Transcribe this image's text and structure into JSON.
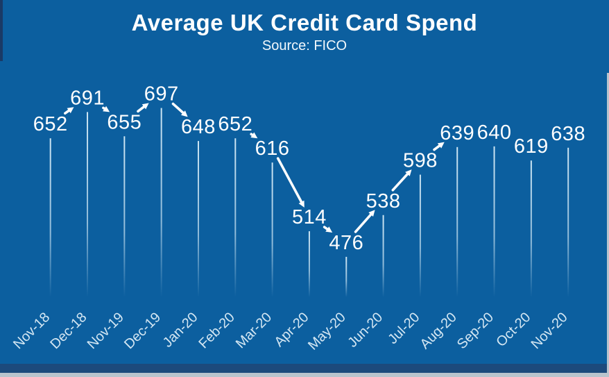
{
  "header": {
    "title": "Average UK Credit Card Spend",
    "subtitle": "Source: FICO"
  },
  "chart_data": {
    "type": "line",
    "title": "Average UK Credit Card Spend",
    "subtitle": "Source: FICO",
    "categories": [
      "Nov-18",
      "Dec-18",
      "Nov-19",
      "Dec-19",
      "Jan-20",
      "Feb-20",
      "Mar-20",
      "Apr-20",
      "May-20",
      "Jun-20",
      "Jul-20",
      "Aug-20",
      "Sep-20",
      "Oct-20",
      "Nov-20"
    ],
    "values": [
      652,
      691,
      655,
      697,
      648,
      652,
      616,
      514,
      476,
      538,
      598,
      639,
      640,
      619,
      638
    ],
    "xlabel": "",
    "ylabel": "",
    "ylim": [
      412,
      700
    ],
    "grid": false,
    "legend": false,
    "data_labels": true,
    "x_tick_rotation": -45,
    "style_hints": {
      "connector_arrows": true,
      "drop_lines_fade_to_baseline": true
    }
  },
  "colors": {
    "background": "#0c5f9f",
    "line": "#ffffff",
    "data_label": "#ffffff",
    "drop_line": "#d8edf8",
    "tick_label": "#d4e7f3",
    "bottom_bar_navy": "#1c4a7c",
    "edge_gray": "#b9c4cd",
    "left_strip_navy": "#1a3a66"
  }
}
